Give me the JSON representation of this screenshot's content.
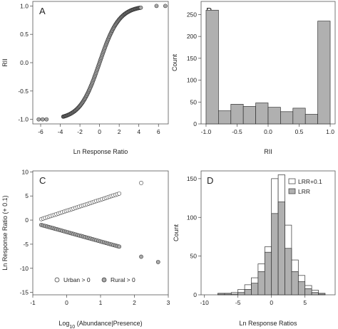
{
  "chart_data": [
    {
      "panel": "A",
      "type": "scatter",
      "xlabel": "Ln Response Ratio",
      "ylabel": "RII",
      "xlim": [
        -6.8,
        7.0
      ],
      "ylim": [
        -1.08,
        1.08
      ],
      "xticks": [
        -6,
        -4,
        -2,
        0,
        2,
        4,
        6
      ],
      "yticks": [
        -1.0,
        -0.5,
        0.0,
        0.5,
        1.0
      ],
      "xtick_labels": [
        "-6",
        "-4",
        "-2",
        "0",
        "2",
        "4",
        "6"
      ],
      "ytick_labels": [
        "-1.0",
        "-0.5",
        "0.0",
        "0.5",
        "1.0"
      ],
      "curve": "RII = tanh(LRR / 2)",
      "x_range_dense": [
        -3.7,
        4.2
      ],
      "extra_points": [
        [
          -6.2,
          -1.0
        ],
        [
          -5.8,
          -1.0
        ],
        [
          -5.4,
          -1.0
        ],
        [
          5.8,
          1.0
        ],
        [
          6.7,
          1.0
        ]
      ]
    },
    {
      "panel": "B",
      "type": "bar",
      "xlabel": "RII",
      "ylabel": "Count",
      "xlim": [
        -1.08,
        1.08
      ],
      "ylim": [
        0,
        280
      ],
      "xticks": [
        -1.0,
        -0.5,
        0.0,
        0.5,
        1.0
      ],
      "yticks": [
        0,
        50,
        100,
        150,
        200,
        250
      ],
      "xtick_labels": [
        "-1.0",
        "-0.5",
        "0.0",
        "0.5",
        "1.0"
      ],
      "ytick_labels": [
        "0",
        "50",
        "100",
        "150",
        "200",
        "250"
      ],
      "bin_edges": [
        -1.0,
        -0.8,
        -0.6,
        -0.4,
        -0.2,
        0.0,
        0.2,
        0.4,
        0.6,
        0.8,
        1.0
      ],
      "values": [
        260,
        30,
        45,
        40,
        48,
        38,
        28,
        36,
        22,
        235
      ]
    },
    {
      "panel": "C",
      "type": "scatter",
      "xlabel": "Log10 (Abundance|Presence)",
      "ylabel": "Ln Response Ratio (+ 0.1)",
      "xlim": [
        -1.0,
        3.0
      ],
      "ylim": [
        -15.5,
        10.2
      ],
      "xticks": [
        -1,
        0,
        1,
        2,
        3
      ],
      "yticks": [
        -15,
        -10,
        -5,
        0,
        5,
        10
      ],
      "xtick_labels": [
        "-1",
        "0",
        "1",
        "2",
        "3"
      ],
      "ytick_labels": [
        "-15",
        "-10",
        "-5",
        "0",
        "5",
        "10"
      ],
      "series": [
        {
          "name": "Urban > 0",
          "line": [
            [
              -0.75,
              0.2
            ],
            [
              1.55,
              5.5
            ]
          ],
          "extra": [
            [
              2.2,
              7.7
            ]
          ]
        },
        {
          "name": "Rural > 0",
          "line": [
            [
              -0.75,
              -1.0
            ],
            [
              1.55,
              -5.5
            ]
          ],
          "extra": [
            [
              2.2,
              -7.6
            ],
            [
              2.7,
              -8.7
            ]
          ]
        }
      ],
      "legend_position": "bottom"
    },
    {
      "panel": "D",
      "type": "bar",
      "xlabel": "Ln Response Ratios",
      "ylabel": "Count",
      "xlim": [
        -10.5,
        9.5
      ],
      "ylim": [
        0,
        160
      ],
      "xticks": [
        -10,
        -5,
        0,
        5
      ],
      "yticks": [
        0,
        50,
        100,
        150
      ],
      "xtick_labels": [
        "-10",
        "-5",
        "0",
        "5"
      ],
      "ytick_labels": [
        "0",
        "50",
        "100",
        "150"
      ],
      "bin_edges": [
        -8,
        -7,
        -6,
        -5,
        -4,
        -3,
        -2,
        -1,
        0,
        1,
        2,
        3,
        4,
        5,
        6,
        7,
        8
      ],
      "series": [
        {
          "name": "LRR+0.1",
          "values": [
            2,
            2,
            3,
            7,
            13,
            22,
            40,
            62,
            150,
            155,
            90,
            45,
            25,
            12,
            6,
            2
          ]
        },
        {
          "name": "LRR",
          "values": [
            1,
            1,
            1,
            3,
            7,
            15,
            30,
            55,
            105,
            120,
            60,
            30,
            17,
            8,
            3,
            1
          ]
        }
      ],
      "legend_position": "top-right"
    }
  ],
  "panels": {
    "A": {
      "label": "A"
    },
    "B": {
      "label": "B"
    },
    "C": {
      "label": "C",
      "legend": [
        "Urban > 0",
        "Rural > 0"
      ]
    },
    "D": {
      "label": "D",
      "legend": [
        "LRR+0.1",
        "LRR"
      ]
    }
  },
  "colors": {
    "hollow": "#ffffff",
    "grey": "#b0b0b0",
    "point_grey": "#a8a8a8",
    "stroke": "#333333"
  }
}
